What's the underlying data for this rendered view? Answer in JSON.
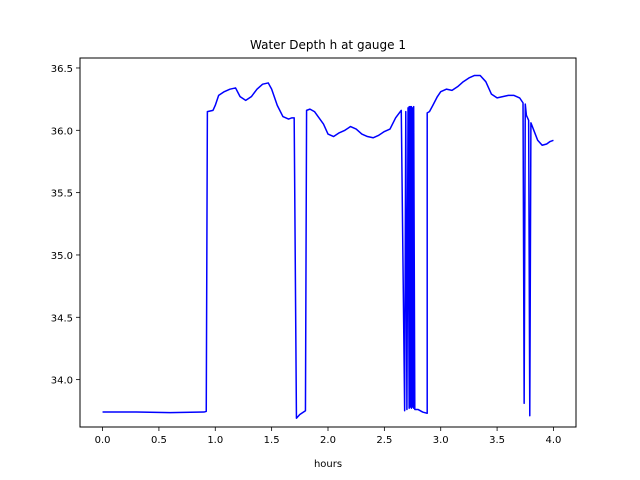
{
  "chart_data": {
    "type": "line",
    "title": "Water Depth h at gauge 1",
    "xlabel": "hours",
    "ylabel": "",
    "xlim": [
      -0.2,
      4.2
    ],
    "ylim": [
      33.62,
      36.58
    ],
    "xticks": [
      0.0,
      0.5,
      1.0,
      1.5,
      2.0,
      2.5,
      3.0,
      3.5,
      4.0
    ],
    "xtick_labels": [
      "0.0",
      "0.5",
      "1.0",
      "1.5",
      "2.0",
      "2.5",
      "3.0",
      "3.5",
      "4.0"
    ],
    "yticks": [
      34.0,
      34.5,
      35.0,
      35.5,
      36.0,
      36.5
    ],
    "ytick_labels": [
      "34.0",
      "34.5",
      "35.0",
      "35.5",
      "36.0",
      "36.5"
    ],
    "grid": false,
    "line_color": "#0000ff",
    "series": [
      {
        "x": [
          0.0,
          0.3,
          0.6,
          0.9,
          0.92,
          0.93,
          0.98,
          1.0,
          1.03,
          1.08,
          1.13,
          1.18,
          1.22,
          1.27,
          1.32,
          1.37,
          1.42,
          1.47,
          1.5,
          1.55,
          1.6,
          1.65,
          1.68,
          1.7,
          1.72,
          1.73,
          1.75,
          1.8,
          1.81,
          1.84,
          1.88,
          1.92,
          1.96,
          2.0,
          2.05,
          2.1,
          2.15,
          2.2,
          2.25,
          2.3,
          2.35,
          2.4,
          2.45,
          2.5,
          2.55,
          2.6,
          2.65,
          2.68,
          2.69,
          2.7,
          2.71,
          2.72,
          2.72,
          2.73,
          2.73,
          2.74,
          2.74,
          2.75,
          2.75,
          2.76,
          2.76,
          2.77,
          2.8,
          2.84,
          2.88,
          2.88,
          2.9,
          2.93,
          2.97,
          3.0,
          3.05,
          3.1,
          3.15,
          3.2,
          3.25,
          3.3,
          3.35,
          3.4,
          3.45,
          3.5,
          3.55,
          3.6,
          3.65,
          3.7,
          3.73,
          3.74,
          3.75,
          3.76,
          3.78,
          3.79,
          3.8,
          3.83,
          3.86,
          3.9,
          3.94,
          3.97,
          4.0
        ],
        "y": [
          33.74,
          33.74,
          33.735,
          33.74,
          33.745,
          36.15,
          36.16,
          36.2,
          36.28,
          36.31,
          36.33,
          36.34,
          36.27,
          36.24,
          36.27,
          36.33,
          36.37,
          36.38,
          36.33,
          36.2,
          36.11,
          36.09,
          36.1,
          36.1,
          33.69,
          33.7,
          33.72,
          33.75,
          36.16,
          36.17,
          36.15,
          36.1,
          36.05,
          35.97,
          35.95,
          35.98,
          36.0,
          36.03,
          36.01,
          35.97,
          35.95,
          35.94,
          35.96,
          35.99,
          36.01,
          36.1,
          36.16,
          33.75,
          36.15,
          33.76,
          36.18,
          33.77,
          36.19,
          33.78,
          36.19,
          33.77,
          36.19,
          33.78,
          36.18,
          33.77,
          36.19,
          33.76,
          33.76,
          33.74,
          33.73,
          36.14,
          36.15,
          36.2,
          36.27,
          36.31,
          36.33,
          36.32,
          36.35,
          36.39,
          36.42,
          36.44,
          36.44,
          36.39,
          36.29,
          36.26,
          36.27,
          36.28,
          36.28,
          36.26,
          36.22,
          33.81,
          36.21,
          36.12,
          36.08,
          33.71,
          36.06,
          35.99,
          35.92,
          35.88,
          35.89,
          35.91,
          35.92
        ]
      }
    ]
  }
}
